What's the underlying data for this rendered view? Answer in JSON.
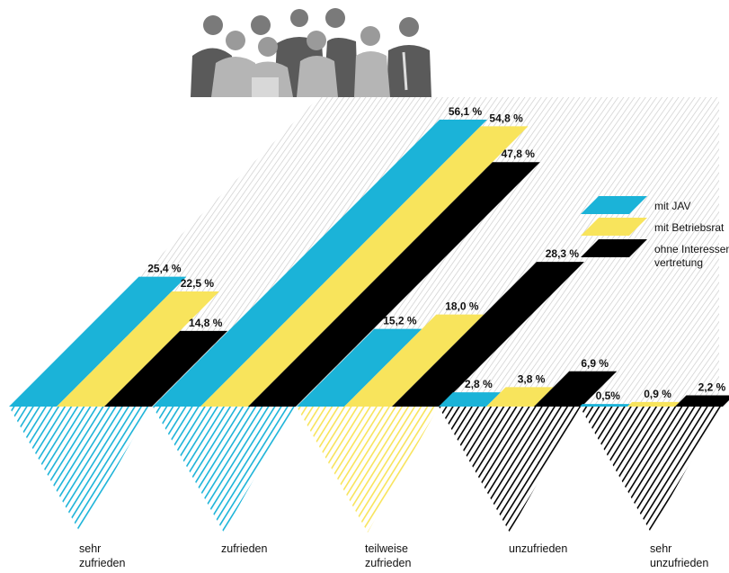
{
  "colors": {
    "mit_jav": "#1bb3d8",
    "mit_betriebsrat": "#f8e45c",
    "ohne_interessenvertretung": "#000000",
    "background_hatch": "#c9c9c9"
  },
  "photo": {
    "icon": "group-of-people-photo"
  },
  "chart_data": {
    "type": "bar",
    "categories": [
      [
        "sehr",
        "zufrieden"
      ],
      [
        "zufrieden"
      ],
      [
        "teilweise",
        "zufrieden"
      ],
      [
        "unzufrieden"
      ],
      [
        "sehr",
        "unzufrieden"
      ]
    ],
    "series": [
      {
        "name": "mit JAV",
        "values": [
          25.4,
          56.1,
          15.2,
          2.8,
          0.5
        ],
        "labels": [
          "25,4 %",
          "56,1 %",
          "15,2 %",
          "2,8 %",
          "0,5%"
        ]
      },
      {
        "name": "mit Betriebsrat",
        "values": [
          22.5,
          54.8,
          18.0,
          3.8,
          0.9
        ],
        "labels": [
          "22,5 %",
          "54,8 %",
          "18,0 %",
          "3,8 %",
          "0,9 %"
        ]
      },
      {
        "name": [
          "ohne Interessen-",
          "vertretung"
        ],
        "values": [
          14.8,
          47.8,
          28.3,
          6.9,
          2.2
        ],
        "labels": [
          "14,8 %",
          "47,8 %",
          "28,3 %",
          "6,9 %",
          "2,2 %"
        ]
      }
    ],
    "triangle_colors": [
      "#1bb3d8",
      "#1bb3d8",
      "#f8e45c",
      "#000000",
      "#000000"
    ],
    "ylim": [
      0,
      56.1
    ],
    "legend_position": "right"
  }
}
